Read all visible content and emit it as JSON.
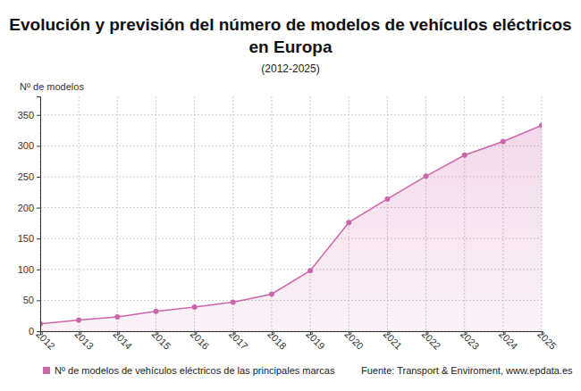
{
  "chart_data": {
    "type": "line",
    "title": "Evolución y previsión del número de modelos de vehículos eléctricos en Europa",
    "subtitle": "(2012-2025)",
    "y_label": "Nº de modelos",
    "source": "Fuente: Transport & Enviroment, www.epdata.es",
    "x": [
      2012,
      2013,
      2014,
      2015,
      2016,
      2017,
      2018,
      2019,
      2020,
      2021,
      2022,
      2023,
      2024,
      2025
    ],
    "series": [
      {
        "name": "Nº de modelos de vehículos eléctricos de las principales marcas",
        "color": "#cc66aa",
        "marker": "circle",
        "values": [
          12,
          18,
          23,
          32,
          39,
          47,
          60,
          98,
          176,
          214,
          251,
          285,
          307,
          333
        ]
      }
    ],
    "xlim": [
      2012,
      2025
    ],
    "xticks": [
      2012,
      2013,
      2014,
      2015,
      2016,
      2017,
      2018,
      2019,
      2020,
      2021,
      2022,
      2023,
      2024,
      2025
    ],
    "ylim": [
      0,
      380
    ],
    "yticks": [
      0,
      50,
      100,
      150,
      200,
      250,
      300,
      350
    ],
    "grid": true,
    "legend": "bottom"
  }
}
